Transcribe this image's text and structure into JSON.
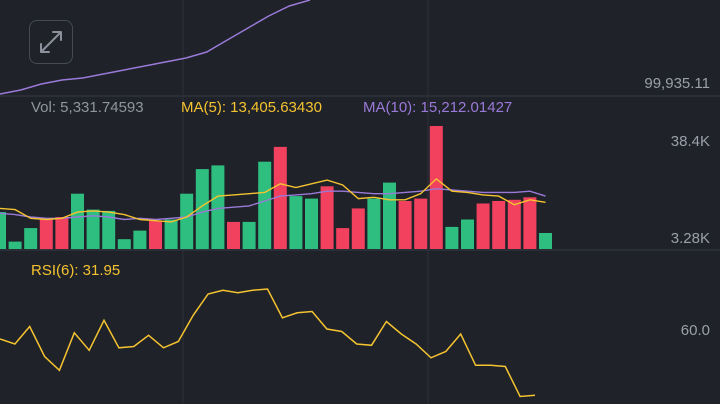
{
  "price": {
    "axis_label": "99,935.11",
    "ma_line": [
      94,
      90,
      84,
      80,
      78,
      74,
      70,
      66,
      62,
      58,
      52,
      40,
      28,
      16,
      6,
      0
    ]
  },
  "volume": {
    "legend": {
      "vol_label": "Vol: 5,331.74593",
      "ma5_label": "MA(5): 13,405.63430",
      "ma10_label": "MA(10): 15,212.01427"
    },
    "axis_top": "38.4K",
    "axis_bottom": "3.28K",
    "bars": [
      {
        "v": 0.3,
        "c": "up"
      },
      {
        "v": 0.06,
        "c": "up"
      },
      {
        "v": 0.17,
        "c": "up"
      },
      {
        "v": 0.25,
        "c": "down"
      },
      {
        "v": 0.26,
        "c": "down"
      },
      {
        "v": 0.45,
        "c": "up"
      },
      {
        "v": 0.32,
        "c": "up"
      },
      {
        "v": 0.31,
        "c": "up"
      },
      {
        "v": 0.08,
        "c": "up"
      },
      {
        "v": 0.15,
        "c": "up"
      },
      {
        "v": 0.23,
        "c": "down"
      },
      {
        "v": 0.24,
        "c": "up"
      },
      {
        "v": 0.45,
        "c": "up"
      },
      {
        "v": 0.65,
        "c": "up"
      },
      {
        "v": 0.68,
        "c": "up"
      },
      {
        "v": 0.22,
        "c": "down"
      },
      {
        "v": 0.22,
        "c": "up"
      },
      {
        "v": 0.71,
        "c": "up"
      },
      {
        "v": 0.83,
        "c": "down"
      },
      {
        "v": 0.43,
        "c": "up"
      },
      {
        "v": 0.41,
        "c": "up"
      },
      {
        "v": 0.51,
        "c": "down"
      },
      {
        "v": 0.17,
        "c": "down"
      },
      {
        "v": 0.33,
        "c": "down"
      },
      {
        "v": 0.41,
        "c": "up"
      },
      {
        "v": 0.54,
        "c": "up"
      },
      {
        "v": 0.39,
        "c": "down"
      },
      {
        "v": 0.41,
        "c": "down"
      },
      {
        "v": 1.0,
        "c": "down"
      },
      {
        "v": 0.18,
        "c": "up"
      },
      {
        "v": 0.24,
        "c": "up"
      },
      {
        "v": 0.37,
        "c": "down"
      },
      {
        "v": 0.39,
        "c": "down"
      },
      {
        "v": 0.4,
        "c": "down"
      },
      {
        "v": 0.42,
        "c": "down"
      },
      {
        "v": 0.13,
        "c": "up"
      }
    ],
    "ma5": [
      0.33,
      0.32,
      0.25,
      0.24,
      0.25,
      0.3,
      0.31,
      0.3,
      0.28,
      0.24,
      0.23,
      0.22,
      0.26,
      0.35,
      0.43,
      0.44,
      0.45,
      0.46,
      0.53,
      0.5,
      0.53,
      0.56,
      0.52,
      0.41,
      0.42,
      0.4,
      0.4,
      0.45,
      0.57,
      0.47,
      0.46,
      0.44,
      0.43,
      0.36,
      0.4,
      0.38
    ],
    "ma10": [
      0.29,
      0.28,
      0.26,
      0.25,
      0.25,
      0.26,
      0.27,
      0.26,
      0.24,
      0.25,
      0.24,
      0.25,
      0.26,
      0.3,
      0.33,
      0.34,
      0.35,
      0.39,
      0.43,
      0.44,
      0.45,
      0.47,
      0.47,
      0.46,
      0.45,
      0.45,
      0.46,
      0.47,
      0.49,
      0.48,
      0.47,
      0.46,
      0.46,
      0.46,
      0.47,
      0.43
    ]
  },
  "rsi": {
    "label": "RSI(6): 31.95",
    "axis_label": "60.0",
    "line": [
      52,
      48,
      62,
      38,
      27,
      57,
      43,
      67,
      45,
      46,
      55,
      45,
      50,
      71,
      88,
      91,
      89,
      91,
      92,
      69,
      73,
      74,
      60,
      58,
      48,
      47,
      66,
      56,
      48,
      37,
      42,
      56,
      31,
      31,
      30,
      6,
      7
    ]
  },
  "colors": {
    "up": "#2ebf80",
    "down": "#f2415e",
    "ma5": "#f5c330",
    "ma10": "#9a7ad8",
    "grid": "#353a44"
  },
  "expand_icon": "expand-arrows-icon"
}
